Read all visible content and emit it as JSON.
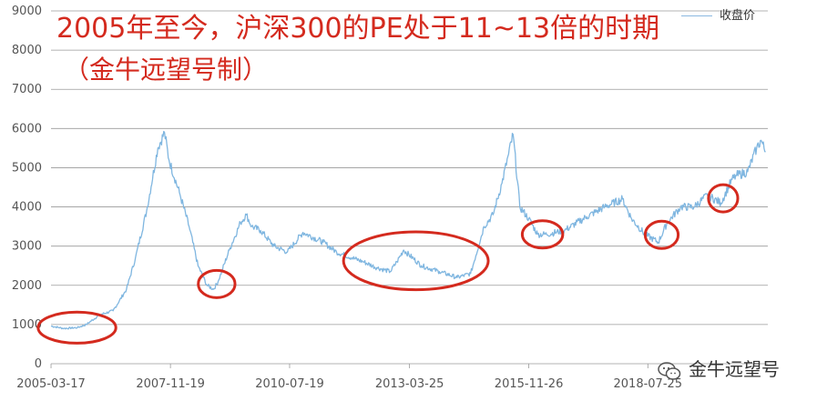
{
  "chart_data": {
    "type": "line",
    "title": "2005年至今，沪深300的PE处于11~13倍的时期",
    "subtitle": "（金牛远望号制）",
    "legend": "收盘价",
    "legend_position": "top-right",
    "grid": true,
    "ylim": [
      0,
      9000
    ],
    "y_ticks": [
      0,
      1000,
      2000,
      3000,
      4000,
      5000,
      6000,
      7000,
      8000,
      9000
    ],
    "x_ticks": [
      "2005-03-17",
      "2007-11-19",
      "2010-07-19",
      "2013-03-25",
      "2015-11-26",
      "2018-07-25"
    ],
    "series": [
      {
        "name": "收盘价",
        "color": "#7fb6e0",
        "x": [
          2005.21,
          2005.5,
          2005.8,
          2006.0,
          2006.3,
          2006.6,
          2006.9,
          2007.1,
          2007.35,
          2007.6,
          2007.75,
          2007.85,
          2008.1,
          2008.3,
          2008.5,
          2008.7,
          2008.85,
          2008.95,
          2009.2,
          2009.45,
          2009.58,
          2009.7,
          2009.9,
          2010.2,
          2010.5,
          2010.85,
          2011.3,
          2011.6,
          2011.95,
          2012.2,
          2012.5,
          2012.8,
          2012.95,
          2013.1,
          2013.5,
          2013.9,
          2014.3,
          2014.6,
          2014.9,
          2015.1,
          2015.3,
          2015.45,
          2015.55,
          2015.7,
          2015.9,
          2016.1,
          2016.3,
          2016.7,
          2017.2,
          2017.6,
          2018.0,
          2018.2,
          2018.5,
          2018.8,
          2019.0,
          2019.3,
          2019.6,
          2019.9,
          2020.2,
          2020.45,
          2020.55,
          2020.8,
          2021.0,
          2021.1,
          2021.2
        ],
        "values": [
          960,
          900,
          920,
          1000,
          1250,
          1350,
          1900,
          2700,
          3900,
          5500,
          5900,
          5200,
          4300,
          3500,
          2500,
          2000,
          1900,
          2100,
          2900,
          3600,
          3800,
          3500,
          3400,
          3000,
          2850,
          3350,
          3100,
          2850,
          2700,
          2600,
          2450,
          2350,
          2600,
          2900,
          2500,
          2350,
          2200,
          2300,
          3500,
          3800,
          4600,
          5350,
          5850,
          4000,
          3700,
          3300,
          3300,
          3400,
          3750,
          4000,
          4200,
          3700,
          3300,
          3100,
          3600,
          4000,
          4000,
          4300,
          4100,
          4700,
          4800,
          4900,
          5500,
          5700,
          5400
        ]
      }
    ],
    "highlighted_periods": [
      {
        "from": "2005-03",
        "to": "2006-06"
      },
      {
        "from": "2008-10",
        "to": "2009-02"
      },
      {
        "from": "2012-01",
        "to": "2014-10"
      },
      {
        "from": "2016-01",
        "to": "2016-06"
      },
      {
        "from": "2018-10",
        "to": "2019-01"
      },
      {
        "from": "2020-03",
        "to": "2020-05"
      }
    ]
  },
  "watermark": "金牛远望号",
  "colors": {
    "line": "#7fb6e0",
    "annotation": "#d42a1e",
    "grid": "#9a9a9a"
  }
}
